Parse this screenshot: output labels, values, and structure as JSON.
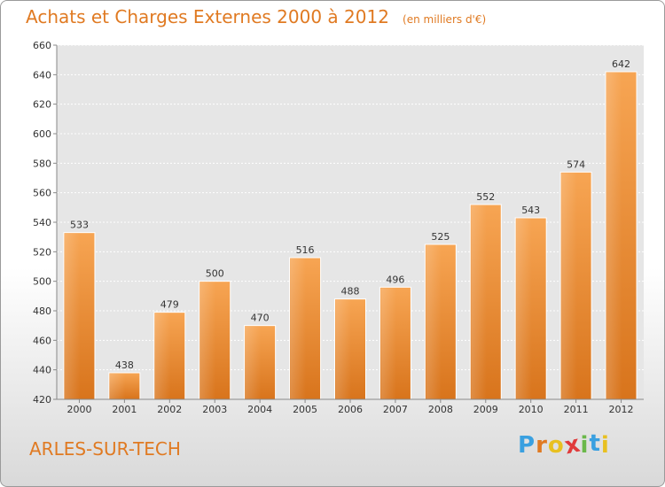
{
  "chart_data": {
    "type": "bar",
    "title": "Achats et Charges Externes 2000 à 2012",
    "unit": "(en milliers d'€)",
    "categories": [
      "2000",
      "2001",
      "2002",
      "2003",
      "2004",
      "2005",
      "2006",
      "2007",
      "2008",
      "2009",
      "2010",
      "2011",
      "2012"
    ],
    "values": [
      533,
      438,
      479,
      500,
      470,
      516,
      488,
      496,
      525,
      552,
      543,
      574,
      642
    ],
    "ylim": [
      420,
      660
    ],
    "yticks": [
      420,
      440,
      460,
      480,
      500,
      520,
      540,
      560,
      580,
      600,
      620,
      640,
      660
    ],
    "grid": true,
    "bar_color": "#f0943a"
  },
  "footer": {
    "commune": "ARLES-SUR-TECH",
    "brand": "Proxiti",
    "brand_colors": [
      "#3aa0e0",
      "#e07a22",
      "#e8c020",
      "#e03a3a",
      "#6ab84a",
      "#3aa0e0",
      "#e8c020"
    ]
  }
}
